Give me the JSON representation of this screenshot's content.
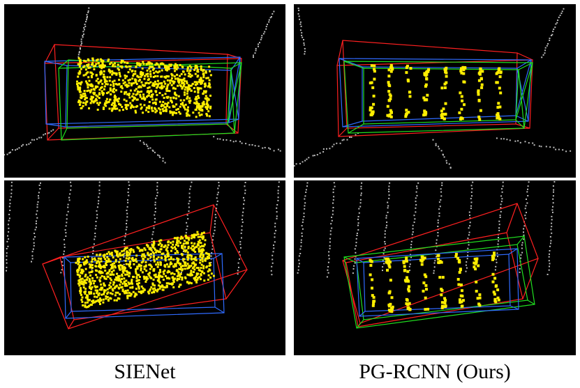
{
  "figure": {
    "colors": {
      "background": "#000000",
      "ground_points": "#bdbdbd",
      "object_points": "#ffee00",
      "box_red": "#ff2020",
      "box_green": "#20e020",
      "box_blue": "#2f6bff"
    },
    "panels": [
      {
        "id": "top-sienet",
        "method": "SIENet",
        "point_density": "dense"
      },
      {
        "id": "top-pgrcnn",
        "method": "PG-RCNN (Ours)",
        "point_density": "sparse"
      },
      {
        "id": "bottom-sienet",
        "method": "SIENet",
        "point_density": "dense"
      },
      {
        "id": "bottom-pgrcnn",
        "method": "PG-RCNN (Ours)",
        "point_density": "sparse"
      }
    ]
  },
  "captions": {
    "left": "SIENet",
    "right": "PG-RCNN (Ours)"
  }
}
